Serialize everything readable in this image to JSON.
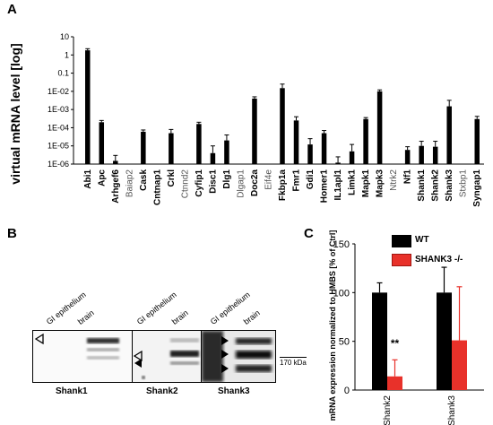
{
  "panels": {
    "a": "A",
    "b": "B",
    "c": "C"
  },
  "chart_data": [
    {
      "type": "bar",
      "ylabel": "virtual mRNA level [log]",
      "yscale": "log",
      "ylim": [
        1e-06,
        10
      ],
      "yticks": [
        "1E-06",
        "1E-05",
        "1E-04",
        "1E-03",
        "1E-02",
        "0.1",
        "1",
        "10"
      ],
      "categories": [
        "Abi1",
        "Apc",
        "Arhgef6",
        "Baiap2",
        "Cask",
        "Cntnap1",
        "Crkl",
        "Ctnnd2",
        "Cyfip1",
        "Disc1",
        "Dlg1",
        "Dlgap1",
        "Doc2a",
        "Eif4e",
        "Fkbp1a",
        "Fmr1",
        "Gdi1",
        "Homer1",
        "IL1apl1",
        "Limk1",
        "Mapk1",
        "Mapk3",
        "Ntrk2",
        "Nf1",
        "Shank1",
        "Shank2",
        "Shank3",
        "Stxbp1",
        "Syngap1"
      ],
      "bold_categories": [
        "Abi1",
        "Apc",
        "Arhgef6",
        "Cask",
        "Cntnap1",
        "Crkl",
        "Cyfip1",
        "Disc1",
        "Dlg1",
        "Doc2a",
        "Fkbp1a",
        "Fmr1",
        "Gdi1",
        "Homer1",
        "IL1apl1",
        "Limk1",
        "Mapk1",
        "Mapk3",
        "Nf1",
        "Shank1",
        "Shank2",
        "Shank3",
        "Syngap1"
      ],
      "values": [
        1.8,
        0.0002,
        1.5e-06,
        null,
        6e-05,
        null,
        5e-05,
        null,
        0.00016,
        4e-06,
        2e-05,
        null,
        0.004,
        null,
        0.015,
        0.00025,
        1.2e-05,
        5e-05,
        1.2e-06,
        5e-06,
        0.0003,
        0.01,
        null,
        6e-06,
        1e-05,
        9e-06,
        0.0015,
        null,
        0.0003
      ],
      "errors_upper": [
        2.2,
        0.00025,
        3e-06,
        null,
        7.5e-05,
        null,
        8e-05,
        null,
        0.0002,
        1e-05,
        4e-05,
        null,
        0.005,
        null,
        0.025,
        0.0004,
        2.5e-05,
        7e-05,
        2.5e-06,
        1.2e-05,
        0.00036,
        0.012,
        null,
        9e-06,
        1.8e-05,
        1.8e-05,
        0.0032,
        null,
        0.00042
      ]
    },
    {
      "type": "image",
      "blots": [
        {
          "name": "Shank1",
          "lanes": [
            "GI epithelium",
            "brain"
          ]
        },
        {
          "name": "Shank2",
          "lanes": [
            "GI epithelium",
            "brain"
          ]
        },
        {
          "name": "Shank3",
          "lanes": [
            "GI epithelium",
            "brain"
          ]
        }
      ],
      "marker": "170 kDa"
    },
    {
      "type": "bar",
      "ylabel": "mRNA expression normalized to HMBS [% of Ctrl]",
      "ylim": [
        0,
        150
      ],
      "yticks": [
        "0",
        "50",
        "100",
        "150"
      ],
      "categories": [
        "Shank2",
        "Shank3"
      ],
      "series": [
        {
          "name": "WT",
          "color": "#000000",
          "values": [
            100,
            100
          ],
          "errors_upper": [
            110,
            126
          ]
        },
        {
          "name": "SHANK3 -/-",
          "color": "#e8312a",
          "values": [
            14,
            51
          ],
          "errors_upper": [
            31,
            106
          ]
        }
      ],
      "annotations": [
        {
          "text": "**",
          "category": "Shank2"
        }
      ]
    }
  ]
}
